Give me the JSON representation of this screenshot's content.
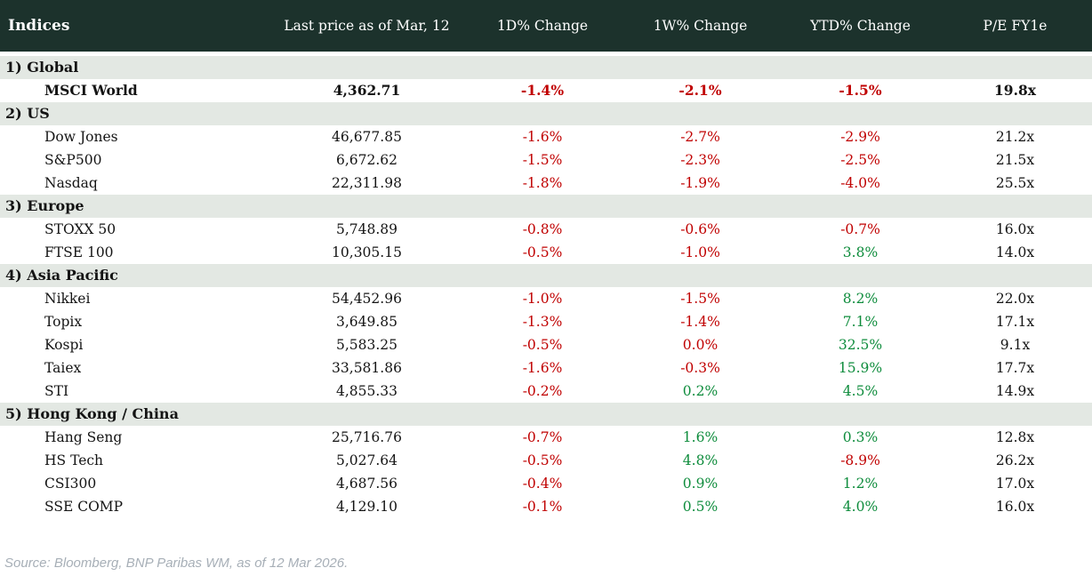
{
  "header": {
    "columns": [
      "Indices",
      "Last price as of Mar, 12",
      "1D% Change",
      "1W% Change",
      "YTD% Change",
      "P/E FY1e"
    ]
  },
  "sections": [
    {
      "label": "1) Global",
      "rows": [
        {
          "name": "MSCI World",
          "price": "4,362.71",
          "chg_1d": "-1.4%",
          "chg_1d_color": "red",
          "chg_1w": "-2.1%",
          "chg_1w_color": "red",
          "chg_ytd": "-1.5%",
          "chg_ytd_color": "red",
          "pe": "19.8x",
          "bold": true
        }
      ]
    },
    {
      "label": "2) US",
      "rows": [
        {
          "name": "Dow Jones",
          "price": "46,677.85",
          "chg_1d": "-1.6%",
          "chg_1d_color": "red",
          "chg_1w": "-2.7%",
          "chg_1w_color": "red",
          "chg_ytd": "-2.9%",
          "chg_ytd_color": "red",
          "pe": "21.2x",
          "bold": false
        },
        {
          "name": "S&P500",
          "price": "6,672.62",
          "chg_1d": "-1.5%",
          "chg_1d_color": "red",
          "chg_1w": "-2.3%",
          "chg_1w_color": "red",
          "chg_ytd": "-2.5%",
          "chg_ytd_color": "red",
          "pe": "21.5x",
          "bold": false
        },
        {
          "name": "Nasdaq",
          "price": "22,311.98",
          "chg_1d": "-1.8%",
          "chg_1d_color": "red",
          "chg_1w": "-1.9%",
          "chg_1w_color": "red",
          "chg_ytd": "-4.0%",
          "chg_ytd_color": "red",
          "pe": "25.5x",
          "bold": false
        }
      ]
    },
    {
      "label": "3) Europe",
      "rows": [
        {
          "name": "STOXX 50",
          "price": "5,748.89",
          "chg_1d": "-0.8%",
          "chg_1d_color": "red",
          "chg_1w": "-0.6%",
          "chg_1w_color": "red",
          "chg_ytd": "-0.7%",
          "chg_ytd_color": "red",
          "pe": "16.0x",
          "bold": false
        },
        {
          "name": "FTSE 100",
          "price": "10,305.15",
          "chg_1d": "-0.5%",
          "chg_1d_color": "red",
          "chg_1w": "-1.0%",
          "chg_1w_color": "red",
          "chg_ytd": "3.8%",
          "chg_ytd_color": "green",
          "pe": "14.0x",
          "bold": false
        }
      ]
    },
    {
      "label": "4) Asia Pacific",
      "rows": [
        {
          "name": "Nikkei",
          "price": "54,452.96",
          "chg_1d": "-1.0%",
          "chg_1d_color": "red",
          "chg_1w": "-1.5%",
          "chg_1w_color": "red",
          "chg_ytd": "8.2%",
          "chg_ytd_color": "green",
          "pe": "22.0x",
          "bold": false
        },
        {
          "name": "Topix",
          "price": "3,649.85",
          "chg_1d": "-1.3%",
          "chg_1d_color": "red",
          "chg_1w": "-1.4%",
          "chg_1w_color": "red",
          "chg_ytd": "7.1%",
          "chg_ytd_color": "green",
          "pe": "17.1x",
          "bold": false
        },
        {
          "name": "Kospi",
          "price": "5,583.25",
          "chg_1d": "-0.5%",
          "chg_1d_color": "red",
          "chg_1w": "0.0%",
          "chg_1w_color": "red",
          "chg_ytd": "32.5%",
          "chg_ytd_color": "green",
          "pe": "9.1x",
          "bold": false
        },
        {
          "name": "Taiex",
          "price": "33,581.86",
          "chg_1d": "-1.6%",
          "chg_1d_color": "red",
          "chg_1w": "-0.3%",
          "chg_1w_color": "red",
          "chg_ytd": "15.9%",
          "chg_ytd_color": "green",
          "pe": "17.7x",
          "bold": false
        },
        {
          "name": "STI",
          "price": "4,855.33",
          "chg_1d": "-0.2%",
          "chg_1d_color": "red",
          "chg_1w": "0.2%",
          "chg_1w_color": "green",
          "chg_ytd": "4.5%",
          "chg_ytd_color": "green",
          "pe": "14.9x",
          "bold": false
        }
      ]
    },
    {
      "label": "5) Hong Kong / China",
      "rows": [
        {
          "name": "Hang Seng",
          "price": "25,716.76",
          "chg_1d": "-0.7%",
          "chg_1d_color": "red",
          "chg_1w": "1.6%",
          "chg_1w_color": "green",
          "chg_ytd": "0.3%",
          "chg_ytd_color": "green",
          "pe": "12.8x",
          "bold": false
        },
        {
          "name": "HS Tech",
          "price": "5,027.64",
          "chg_1d": "-0.5%",
          "chg_1d_color": "red",
          "chg_1w": "4.8%",
          "chg_1w_color": "green",
          "chg_ytd": "-8.9%",
          "chg_ytd_color": "red",
          "pe": "26.2x",
          "bold": false
        },
        {
          "name": "CSI300",
          "price": "4,687.56",
          "chg_1d": "-0.4%",
          "chg_1d_color": "red",
          "chg_1w": "0.9%",
          "chg_1w_color": "green",
          "chg_ytd": "1.2%",
          "chg_ytd_color": "green",
          "pe": "17.0x",
          "bold": false
        },
        {
          "name": "SSE COMP",
          "price": "4,129.10",
          "chg_1d": "-0.1%",
          "chg_1d_color": "red",
          "chg_1w": "0.5%",
          "chg_1w_color": "green",
          "chg_ytd": "4.0%",
          "chg_ytd_color": "green",
          "pe": "16.0x",
          "bold": false
        }
      ]
    }
  ],
  "footer": {
    "source": "Source: Bloomberg, BNP Paribas WM, as of 12 Mar 2026."
  },
  "colors": {
    "header_bg": "#1c322c",
    "section_bg": "#e3e8e3",
    "negative": "#c00000",
    "positive": "#0e8c3c",
    "source_text": "#a7afb7"
  }
}
